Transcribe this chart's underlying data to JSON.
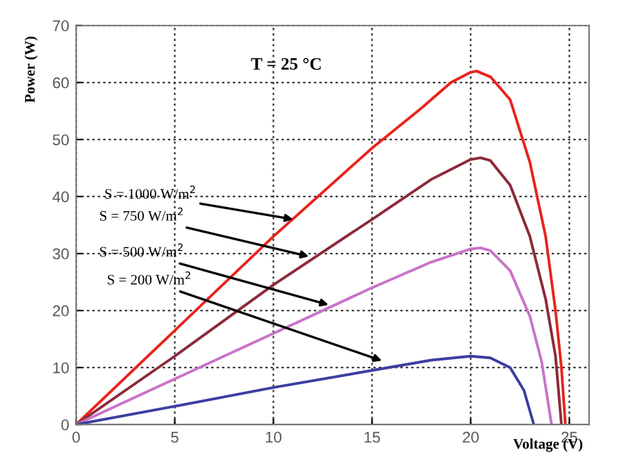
{
  "chart_data": {
    "type": "line",
    "xlabel": "Voltage (V)",
    "ylabel": "Power (W)",
    "xlim": [
      0,
      26
    ],
    "ylim": [
      0,
      70
    ],
    "xticks": [
      0,
      5,
      10,
      15,
      20,
      25
    ],
    "yticks": [
      0,
      10,
      20,
      30,
      40,
      50,
      60,
      70
    ],
    "grid": true,
    "marker": "none",
    "line_style": "solid",
    "series": [
      {
        "color": "#e8241c",
        "x": [
          0,
          5,
          10,
          15,
          17.5,
          19,
          20,
          20.3,
          21,
          22,
          23,
          23.8,
          24.3,
          24.6,
          24.8
        ],
        "values": [
          0,
          16.5,
          33,
          48.5,
          55.5,
          60,
          61.8,
          62,
          61,
          57,
          46,
          33,
          20,
          10,
          0
        ]
      },
      {
        "color": "#8b2a3a",
        "x": [
          0,
          5,
          10,
          15,
          18,
          20,
          20.5,
          21,
          22,
          23,
          23.8,
          24.3,
          24.6
        ],
        "values": [
          0,
          12,
          24.5,
          36,
          43,
          46.5,
          46.8,
          46.3,
          42,
          33,
          22,
          12,
          0
        ]
      },
      {
        "color": "#c873c8",
        "x": [
          0,
          5,
          10,
          15,
          18,
          20,
          20.5,
          21,
          22,
          23,
          23.6,
          24.1
        ],
        "values": [
          0,
          8,
          16,
          24,
          28.5,
          30.8,
          31,
          30.5,
          27,
          19,
          11,
          0
        ]
      },
      {
        "color": "#3a3fa0",
        "x": [
          0,
          5,
          10,
          15,
          18,
          20,
          21,
          22,
          22.7,
          23.2
        ],
        "values": [
          0,
          3.2,
          6.5,
          9.5,
          11.3,
          12,
          11.7,
          10,
          6,
          0
        ]
      }
    ],
    "annotations": [
      "T = 25 °C",
      {
        "text": "S = 1000 W/m$^{2}$",
        "x": 11,
        "y": 36
      },
      {
        "text": "S = 750 W/m$^{2}$",
        "x": 11.8,
        "y": 29.5
      },
      {
        "text": "S = 500 W/m$^{2}$",
        "x": 12.8,
        "y": 21
      },
      {
        "text": "S = 200 W/m$^{2}$",
        "x": 15.5,
        "y": 11.2
      }
    ]
  }
}
